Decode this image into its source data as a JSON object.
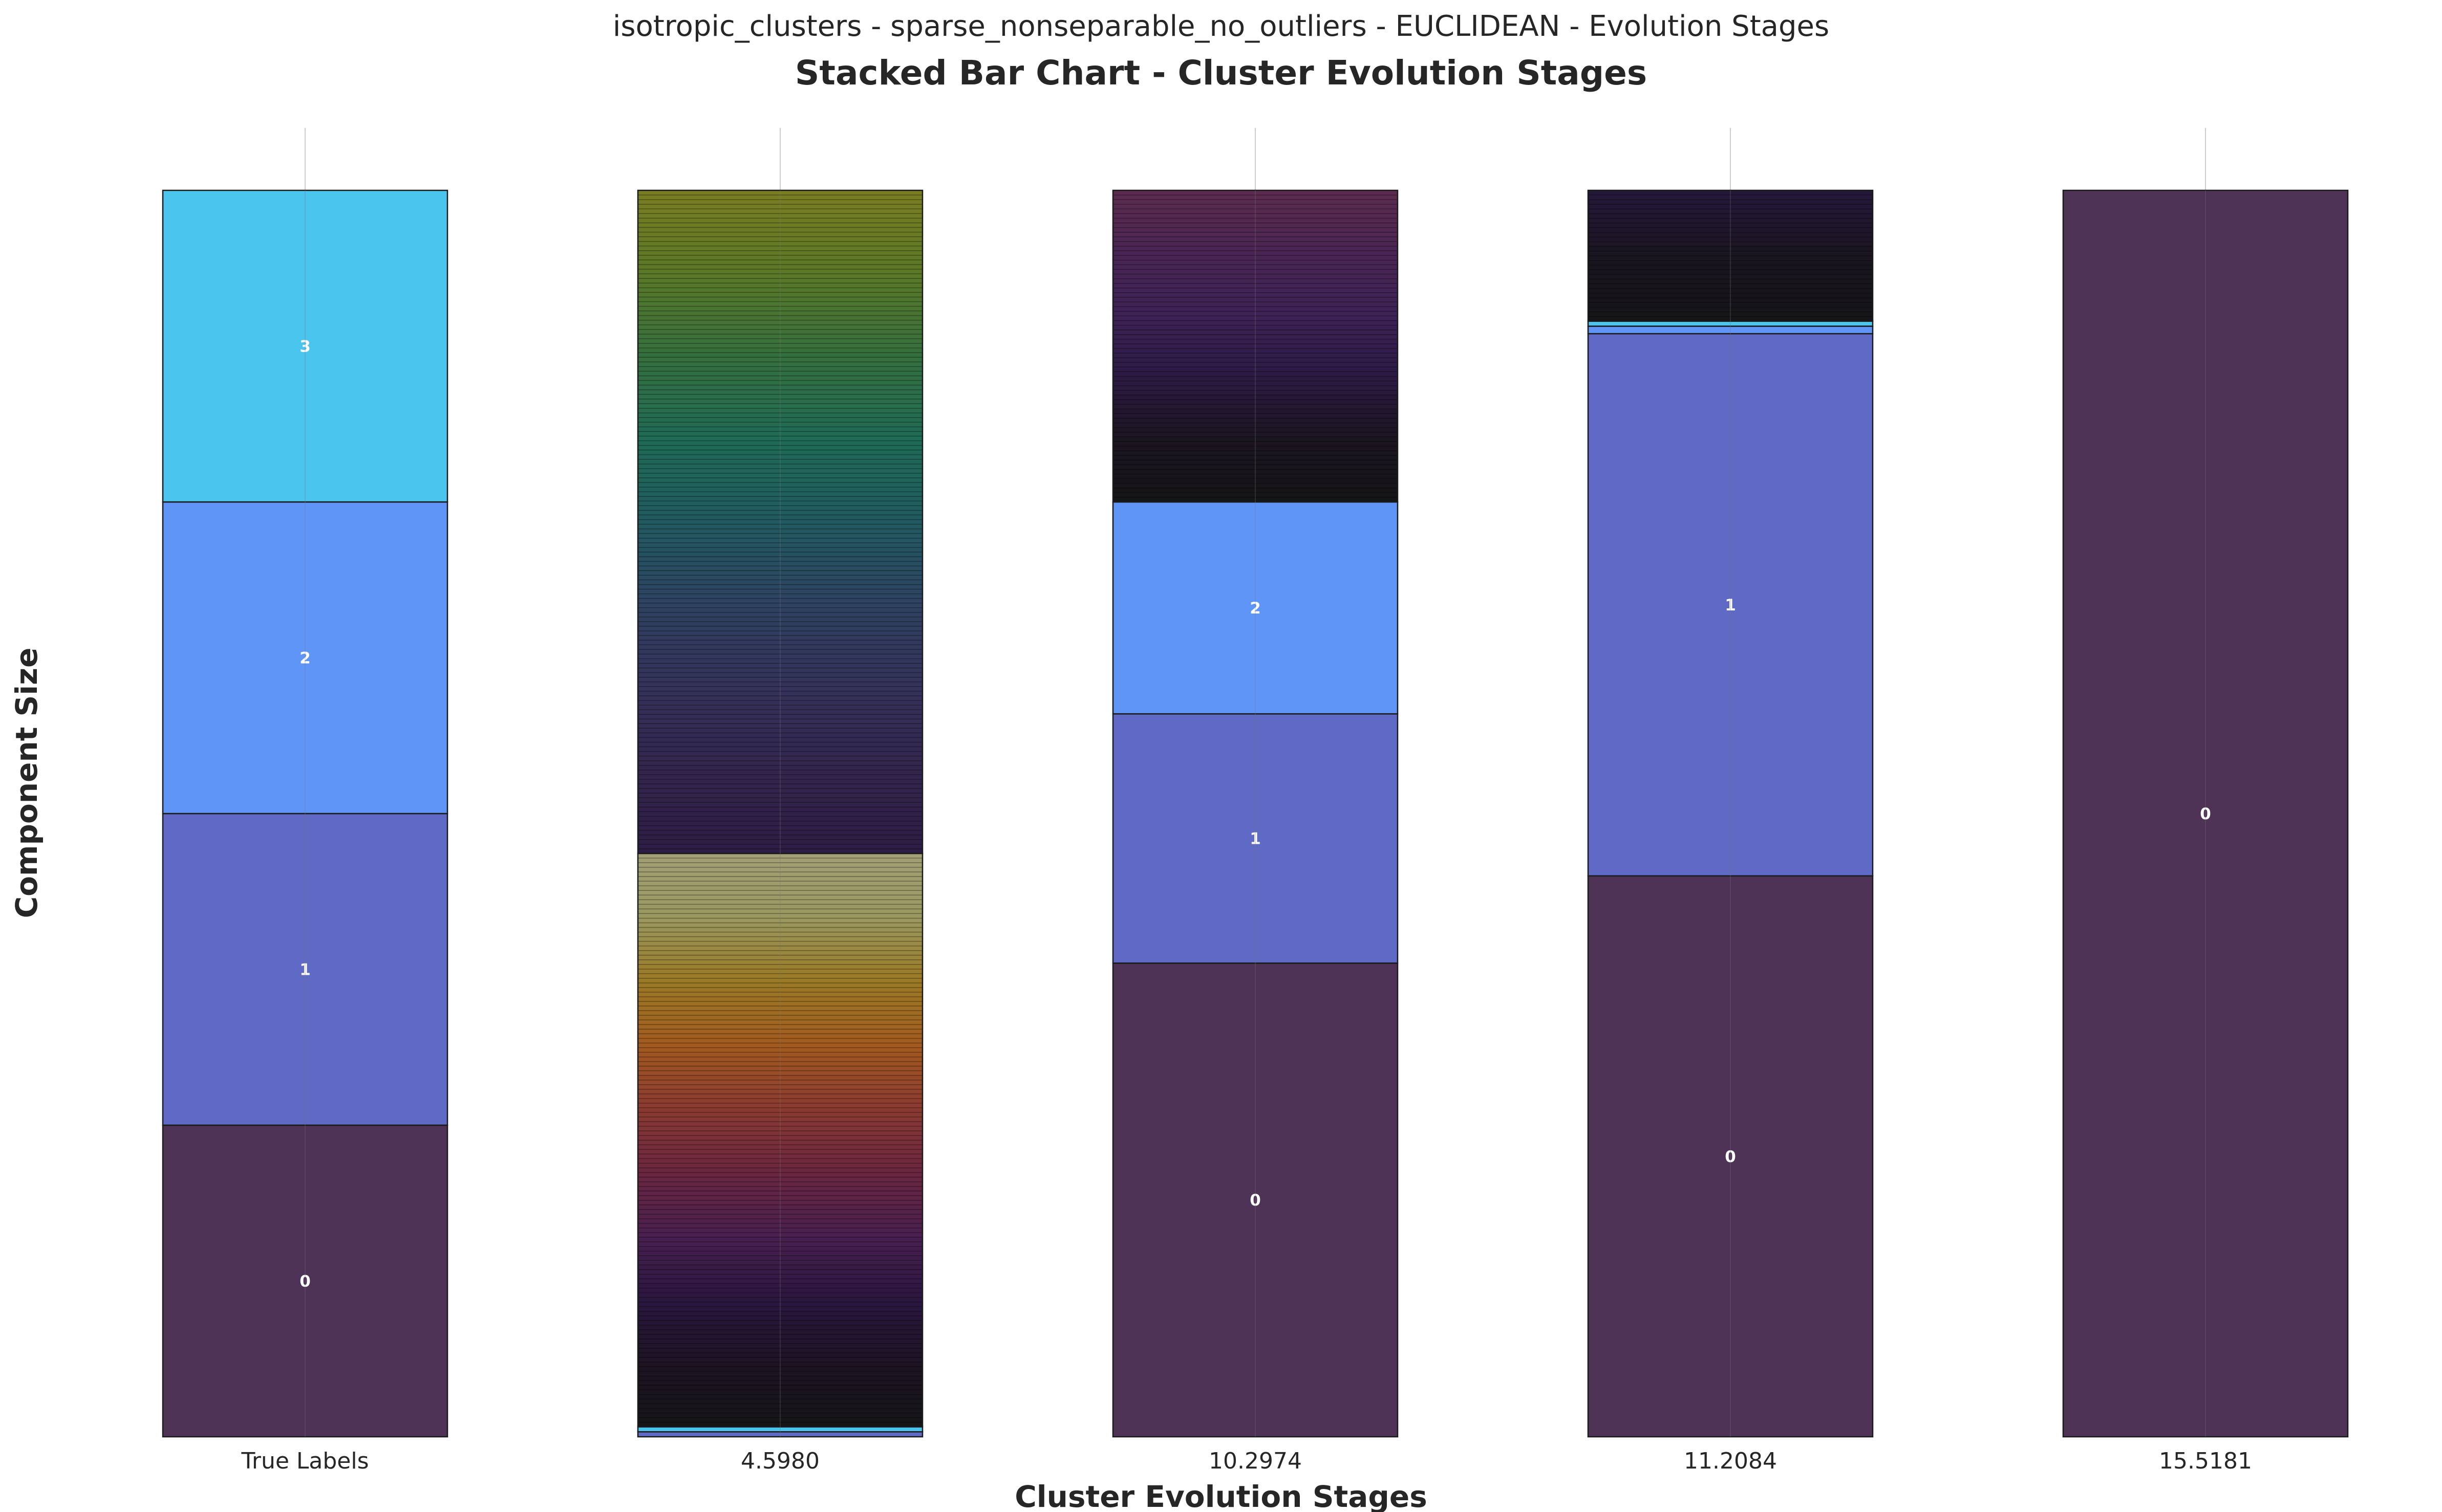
{
  "chart_data": {
    "type": "bar",
    "stacked": true,
    "suptitle": "isotropic_clusters - sparse_nonseparable_no_outliers - EUCLIDEAN - Evolution Stages",
    "title": "Stacked Bar Chart - Cluster Evolution Stages",
    "xlabel": "Cluster Evolution Stages",
    "ylabel": "Component Size",
    "ylim": [
      0,
      1
    ],
    "grid": "vertical",
    "legend": "none",
    "categories": [
      "True Labels",
      "4.5980",
      "10.2974",
      "11.2084",
      "15.5181"
    ],
    "stages": [
      {
        "category": "True Labels",
        "segments": [
          {
            "label": "0",
            "value": 0.25,
            "color": "#4f3357"
          },
          {
            "label": "1",
            "value": 0.25,
            "color": "#5f6ac5"
          },
          {
            "label": "2",
            "value": 0.25,
            "color": "#5f95f7"
          },
          {
            "label": "3",
            "value": 0.25,
            "color": "#4ac5ed"
          }
        ]
      },
      {
        "category": "4.5980",
        "many_small_components": true,
        "note_gradient": "bottom black to purple, red, orange, olive; upper part purple to blue, teal, green, olive",
        "segments": [
          {
            "label": "",
            "value": 0.004,
            "color": "#5f6ac5"
          },
          {
            "label": "",
            "value": 0.004,
            "color": "#4ac5ed"
          },
          {
            "label": "",
            "value": 0.46,
            "color": "#multi"
          },
          {
            "label": "",
            "value": 0.532,
            "color": "#multi"
          }
        ],
        "gradient_lower": [
          "#151518",
          "#1d1423",
          "#2b1640",
          "#49204f",
          "#6a2640",
          "#8a3a30",
          "#a35a1f",
          "#9a7a25",
          "#9a9860",
          "#a29f75"
        ],
        "gradient_upper": [
          "#2e1c44",
          "#33264d",
          "#34315a",
          "#2e4261",
          "#215a61",
          "#1f6b55",
          "#356f3e",
          "#5a7827",
          "#7a7d22"
        ]
      },
      {
        "category": "10.2974",
        "segments": [
          {
            "label": "0",
            "value": 0.38,
            "color": "#4f3357"
          },
          {
            "label": "1",
            "value": 0.2,
            "color": "#5f6ac5"
          },
          {
            "label": "2",
            "value": 0.17,
            "color": "#5f95f7"
          },
          {
            "label": "",
            "value": 0.25,
            "color": "#multi"
          }
        ],
        "gradient_top": [
          "#151518",
          "#1b1520",
          "#2c1a44",
          "#3d2256",
          "#4a2553",
          "#5c2c4f"
        ]
      },
      {
        "category": "11.2084",
        "segments": [
          {
            "label": "0",
            "value": 0.45,
            "color": "#4f3357"
          },
          {
            "label": "1",
            "value": 0.435,
            "color": "#5f6ac5"
          },
          {
            "label": "",
            "value": 0.006,
            "color": "#5f95f7"
          },
          {
            "label": "",
            "value": 0.004,
            "color": "#4ac5ed"
          },
          {
            "label": "",
            "value": 0.105,
            "color": "#multi"
          }
        ],
        "gradient_top": [
          "#151518",
          "#1a1520",
          "#24183a"
        ]
      },
      {
        "category": "15.5181",
        "segments": [
          {
            "label": "0",
            "value": 1.0,
            "color": "#4f3357"
          }
        ]
      }
    ]
  }
}
